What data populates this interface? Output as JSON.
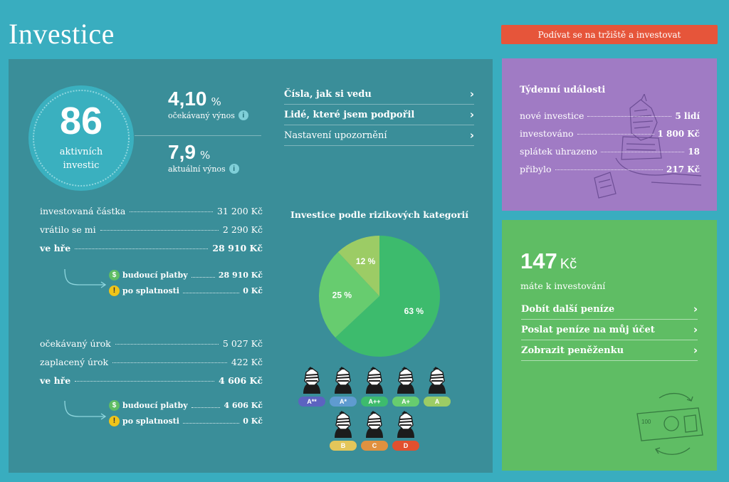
{
  "header": {
    "title": "Investice",
    "cta_label": "Podívat se na tržiště a investovat"
  },
  "summary": {
    "active_count": "86",
    "active_label_1": "aktivních",
    "active_label_2": "investic",
    "expected_yield": "4,10",
    "expected_yield_unit": "%",
    "expected_yield_label": "očekávaný výnos",
    "actual_yield": "7,9",
    "actual_yield_unit": "%",
    "actual_yield_label": "aktuální výnos",
    "info_glyph": "i"
  },
  "links": [
    {
      "label": "Čísla, jak si vedu",
      "bold": true
    },
    {
      "label": "Lidé, které jsem podpořil",
      "bold": true
    },
    {
      "label": "Nastavení upozornění",
      "bold": false
    }
  ],
  "principal": {
    "rows": [
      {
        "label": "investovaná částka",
        "value": "31 200 Kč"
      },
      {
        "label": "vrátilo se mi",
        "value": "2 290 Kč"
      },
      {
        "label": "ve hře",
        "value": "28 910 Kč"
      }
    ],
    "sub": [
      {
        "label": "budoucí platby",
        "value": "28 910 Kč",
        "icon": "$"
      },
      {
        "label": "po splatnosti",
        "value": "0 Kč",
        "icon": "!"
      }
    ]
  },
  "interest": {
    "rows": [
      {
        "label": "očekávaný úrok",
        "value": "5 027 Kč"
      },
      {
        "label": "zaplacený úrok",
        "value": "422 Kč"
      },
      {
        "label": "ve hře",
        "value": "4 606 Kč"
      }
    ],
    "sub": [
      {
        "label": "budoucí platby",
        "value": "4 606 Kč",
        "icon": "$"
      },
      {
        "label": "po splatnosti",
        "value": "0 Kč",
        "icon": "!"
      }
    ]
  },
  "chart_data": {
    "type": "pie",
    "title": "Investice podle rizikových kategorií",
    "slices": [
      {
        "label": "63 %",
        "value": 63,
        "color": "#3dbb6d"
      },
      {
        "label": "25 %",
        "value": 25,
        "color": "#67cc6f"
      },
      {
        "label": "12 %",
        "value": 12,
        "color": "#9ccc65"
      }
    ],
    "start_angle_deg": 0
  },
  "categories": [
    {
      "label": "A**",
      "color": "#5c63c0",
      "text": "#ffffff"
    },
    {
      "label": "A*",
      "color": "#5f9bd0",
      "text": "#ffffff"
    },
    {
      "label": "A++",
      "color": "#3dbb6d",
      "text": "#ffffff"
    },
    {
      "label": "A+",
      "color": "#67cc6f",
      "text": "#ffffff"
    },
    {
      "label": "A",
      "color": "#9ccc65",
      "text": "#ffffff"
    },
    {
      "label": "B",
      "color": "#e3c65a",
      "text": "#ffffff"
    },
    {
      "label": "C",
      "color": "#e0913f",
      "text": "#ffffff"
    },
    {
      "label": "D",
      "color": "#e2502f",
      "text": "#ffffff"
    }
  ],
  "events": {
    "title": "Týdenní události",
    "rows": [
      {
        "label": "nové investice",
        "value": "5 lidí"
      },
      {
        "label": "investováno",
        "value": "1 800 Kč"
      },
      {
        "label": "splátek uhrazeno",
        "value": "18"
      },
      {
        "label": "přibylo",
        "value": "217 Kč"
      }
    ]
  },
  "wallet": {
    "amount": "147",
    "unit": "Kč",
    "label": "máte k investování",
    "links": [
      "Dobít další peníze",
      "Poslat peníze na můj účet",
      "Zobrazit peněženku"
    ],
    "banknote_number": "100"
  }
}
